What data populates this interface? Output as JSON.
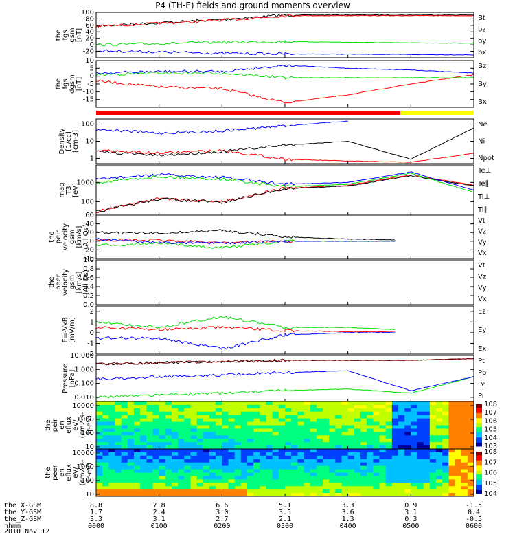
{
  "title": "P4 (TH-E) fields and ground moments overview",
  "date_label": "2010 Nov 12",
  "colors": {
    "black": "#000000",
    "red": "#ff0000",
    "green": "#00e000",
    "blue": "#0000ff",
    "yellow": "#ffff00",
    "darkred": "#8b0000"
  },
  "mode_bar": {
    "segments": [
      {
        "to": "0450",
        "color": "#ff0000"
      },
      {
        "to": "0600",
        "color": "#ffff00"
      }
    ]
  },
  "time_axis": {
    "labels": [
      "0000",
      "0100",
      "0200",
      "0300",
      "0400",
      "0500",
      "0600"
    ],
    "row_titles": [
      "the_X-GSM",
      "the_Y-GSM",
      "the_Z-GSM",
      "hhmm"
    ],
    "x_gsm": [
      "8.8",
      "7.8",
      "6.6",
      "5.1",
      "3.3",
      "0.9",
      "-1.5"
    ],
    "y_gsm": [
      "1.7",
      "2.4",
      "3.0",
      "3.5",
      "3.6",
      "3.1",
      "0.4"
    ],
    "z_gsm": [
      "3.3",
      "3.1",
      "2.7",
      "2.1",
      "1.3",
      "0.3",
      "-0.5"
    ]
  },
  "chart_data": [
    {
      "type": "line",
      "id": "fgs_total",
      "ylabel": [
        "the",
        "fgs",
        "gsm",
        "[nT]"
      ],
      "ylim": [
        -40,
        100
      ],
      "ticks": [
        "-20",
        "0",
        "20",
        "40",
        "60",
        "80",
        "100"
      ],
      "tick_values": [
        -20,
        0,
        20,
        40,
        60,
        80,
        100
      ],
      "x": [
        "0000",
        "0100",
        "0200",
        "0300",
        "0400",
        "0500",
        "0600"
      ],
      "series": [
        {
          "name": "Bt",
          "color": "#000000",
          "values": [
            58,
            68,
            78,
            92,
            92,
            92,
            92
          ]
        },
        {
          "name": "bz",
          "color": "#ff0000",
          "values": [
            57,
            66,
            76,
            90,
            90,
            90,
            90
          ]
        },
        {
          "name": "by",
          "color": "#00e000",
          "values": [
            0,
            4,
            8,
            10,
            8,
            6,
            5
          ]
        },
        {
          "name": "bx",
          "color": "#0000ff",
          "values": [
            -18,
            -22,
            -26,
            -28,
            -29,
            -30,
            -31
          ]
        }
      ]
    },
    {
      "type": "line",
      "id": "fgs_detrended",
      "ylabel": [
        "the",
        "fgs",
        "dgsm",
        "[nT]"
      ],
      "ylim": [
        -20,
        10
      ],
      "ticks": [
        "-15",
        "-10",
        "-5",
        "0",
        "5",
        "10"
      ],
      "tick_values": [
        -15,
        -10,
        -5,
        0,
        5,
        10
      ],
      "x": [
        "0000",
        "0100",
        "0200",
        "0300",
        "0400",
        "0500",
        "0600"
      ],
      "series": [
        {
          "name": "Bz",
          "color": "#ff0000",
          "values": [
            -3,
            -7,
            -8,
            -17,
            -12,
            -5,
            1
          ]
        },
        {
          "name": "By",
          "color": "#00e000",
          "values": [
            1,
            2,
            2,
            -1,
            -1,
            -1,
            -1
          ]
        },
        {
          "name": "Bx",
          "color": "#0000ff",
          "values": [
            2,
            3,
            3,
            7,
            5,
            4,
            2
          ]
        }
      ]
    },
    {
      "type": "line",
      "id": "density",
      "scale": "log",
      "ylabel": [
        "Density",
        "[1/cc]",
        "[cm^-3]"
      ],
      "ylim": [
        0.5,
        200
      ],
      "ticks": [
        "1",
        "10",
        "100"
      ],
      "tick_values": [
        1,
        10,
        100
      ],
      "x": [
        "0000",
        "0100",
        "0200",
        "0300",
        "0400",
        "0500",
        "0600"
      ],
      "series": [
        {
          "name": "Ne",
          "color": "#ff0000",
          "values": [
            3,
            2,
            3,
            0.9,
            0.7,
            0.6,
            2
          ]
        },
        {
          "name": "Ni",
          "color": "#000000",
          "values": [
            2.5,
            1.5,
            2.5,
            6,
            10,
            0.9,
            60
          ]
        },
        {
          "name": "Npot",
          "color": "#0000ff",
          "values": [
            50,
            30,
            40,
            80,
            150,
            null,
            null
          ]
        }
      ]
    },
    {
      "type": "line",
      "id": "temperature",
      "scale": "log",
      "ylabel": [
        "mag",
        "T3",
        "[eV]"
      ],
      "ylim": [
        20,
        8000
      ],
      "ticks": [
        "100",
        "1000"
      ],
      "tick_values": [
        100,
        1000
      ],
      "x": [
        "0000",
        "0100",
        "0200",
        "0300",
        "0400",
        "0500",
        "0600"
      ],
      "series": [
        {
          "name": "Te⊥",
          "color": "#ff0000",
          "values": [
            30,
            150,
            100,
            500,
            700,
            2500,
            700
          ]
        },
        {
          "name": "Te∥",
          "color": "#000000",
          "values": [
            30,
            140,
            90,
            480,
            650,
            2200,
            650
          ]
        },
        {
          "name": "Ti⊥",
          "color": "#0000ff",
          "values": [
            1500,
            2500,
            1800,
            800,
            1000,
            3500,
            400
          ]
        },
        {
          "name": "Ti∥",
          "color": "#00e000",
          "values": [
            1000,
            2000,
            1500,
            600,
            800,
            3000,
            300
          ]
        }
      ]
    },
    {
      "type": "line",
      "id": "peir_velocity",
      "ylabel": [
        "the",
        "peir",
        "velocity",
        "gsm",
        "[km/s]",
        "(All Qs)"
      ],
      "ylim": [
        -40,
        60
      ],
      "ticks": [
        "-40",
        "-20",
        "0",
        "20",
        "40",
        "60"
      ],
      "tick_values": [
        -40,
        -20,
        0,
        20,
        40,
        60
      ],
      "x": [
        "0000",
        "0100",
        "0200",
        "0300",
        "0400",
        "0445"
      ],
      "series": [
        {
          "name": "Vt",
          "color": "#000000",
          "values": [
            20,
            18,
            25,
            10,
            5,
            3
          ]
        },
        {
          "name": "Vz",
          "color": "#ff0000",
          "values": [
            3,
            2,
            -3,
            0,
            0,
            0
          ]
        },
        {
          "name": "Vy",
          "color": "#00e000",
          "values": [
            -10,
            -5,
            -15,
            0,
            0,
            0
          ]
        },
        {
          "name": "Vx",
          "color": "#0000ff",
          "values": [
            5,
            -3,
            -5,
            0,
            0,
            0
          ]
        }
      ]
    },
    {
      "type": "line",
      "id": "peer_velocity",
      "ylabel": [
        "the",
        "peer",
        "velocity",
        "gsm",
        "[km/s]",
        "(All Qs)"
      ],
      "ylim": [
        0,
        1
      ],
      "ticks": [
        "0.0",
        "0.2",
        "0.4",
        "0.6",
        "0.8",
        "1.0"
      ],
      "tick_values": [
        0,
        0.2,
        0.4,
        0.6,
        0.8,
        1.0
      ],
      "x": [],
      "series": [
        {
          "name": "Vt",
          "color": "#000000",
          "values": []
        },
        {
          "name": "Vz",
          "color": "#ff0000",
          "values": []
        },
        {
          "name": "Vy",
          "color": "#00e000",
          "values": []
        },
        {
          "name": "Vx",
          "color": "#0000ff",
          "values": []
        }
      ]
    },
    {
      "type": "line",
      "id": "efield",
      "ylabel": [
        "E=-VxB",
        "[mV/m]"
      ],
      "ylim": [
        -2,
        2.5
      ],
      "ticks": [
        "-2",
        "-1",
        "0",
        "1",
        "2"
      ],
      "tick_values": [
        -2,
        -1,
        0,
        1,
        2
      ],
      "x": [
        "0000",
        "0100",
        "0200",
        "0300",
        "0400",
        "0445"
      ],
      "series": [
        {
          "name": "Ez",
          "color": "#ff0000",
          "values": [
            0.5,
            0.3,
            0.5,
            0.2,
            0.1,
            0.1
          ]
        },
        {
          "name": "Ey",
          "color": "#00e000",
          "values": [
            1,
            0.5,
            1.5,
            0.5,
            0.5,
            0.3
          ]
        },
        {
          "name": "Ex",
          "color": "#0000ff",
          "values": [
            -0.5,
            -0.5,
            -1.5,
            -0.2,
            0,
            0
          ]
        }
      ]
    },
    {
      "type": "line",
      "id": "pressure",
      "scale": "log",
      "ylabel": [
        "Pressure",
        "[nPa]"
      ],
      "ylim": [
        0.005,
        10
      ],
      "ticks": [
        "0.010",
        "0.100",
        "1.000",
        "10.000"
      ],
      "tick_values": [
        0.01,
        0.1,
        1,
        10
      ],
      "x": [
        "0000",
        "0100",
        "0200",
        "0300",
        "0400",
        "0500",
        "0600"
      ],
      "series": [
        {
          "name": "Pt",
          "color": "#000000",
          "values": [
            2.5,
            3,
            3.5,
            4.5,
            4.5,
            4.5,
            6
          ]
        },
        {
          "name": "Pb",
          "color": "#8b0000",
          "values": [
            2.5,
            3,
            3.5,
            4.5,
            4.5,
            4.5,
            6
          ]
        },
        {
          "name": "Pe",
          "color": "#00e000",
          "values": [
            0.01,
            0.015,
            0.02,
            0.03,
            0.04,
            0.02,
            0.3
          ]
        },
        {
          "name": "Pi",
          "color": "#0000ff",
          "values": [
            0.2,
            0.3,
            0.4,
            0.6,
            0.8,
            0.03,
            0.3
          ]
        }
      ]
    },
    {
      "type": "heatmap",
      "id": "peir_eflux",
      "ylabel": [
        "the",
        "peir",
        "en",
        "eflux",
        "eV/",
        "(cm^2-s-",
        "sr-eV)"
      ],
      "yscale": "log",
      "ylim": [
        7,
        20000
      ],
      "ticks": [
        "10",
        "100",
        "1000",
        "10000"
      ],
      "tick_values": [
        10,
        100,
        1000,
        10000
      ],
      "colorbar": {
        "ticks": [
          "10^3",
          "10^4",
          "10^5",
          "10^6",
          "10^7",
          "10^8"
        ],
        "range": [
          3,
          8
        ]
      }
    },
    {
      "type": "heatmap",
      "id": "peer_eflux",
      "ylabel": [
        "the",
        "peer",
        "en",
        "eflux",
        "eV/",
        "(cm^2-s-",
        "sr-eV)"
      ],
      "yscale": "log",
      "ylim": [
        7,
        20000
      ],
      "ticks": [
        "10",
        "100",
        "1000",
        "10000"
      ],
      "tick_values": [
        10,
        100,
        1000,
        10000
      ],
      "colorbar": {
        "ticks": [
          "10^4",
          "10^5",
          "10^6",
          "10^7",
          "10^8"
        ],
        "range": [
          4,
          8
        ]
      }
    }
  ]
}
